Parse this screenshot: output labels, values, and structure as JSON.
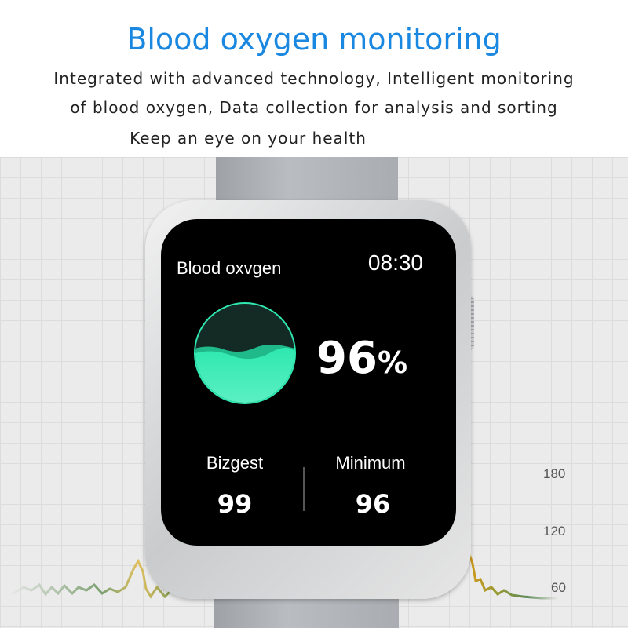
{
  "header": {
    "title": "Blood oxygen monitoring",
    "line1": "Integrated with advanced technology, Intelligent monitoring",
    "line2": "of blood oxygen, Data collection for analysis and sorting",
    "line3": "Keep an eye on your health"
  },
  "watch": {
    "label": "Blood oxvgen",
    "time": "08:30",
    "value": "96",
    "unit": "%",
    "level_percent": 55,
    "highest_label": "Bizgest",
    "highest_value": "99",
    "minimum_label": "Minimum",
    "minimum_value": "96",
    "accent": "#2ee8b0"
  },
  "axis": {
    "ticks": [
      "180",
      "120",
      "60"
    ]
  }
}
